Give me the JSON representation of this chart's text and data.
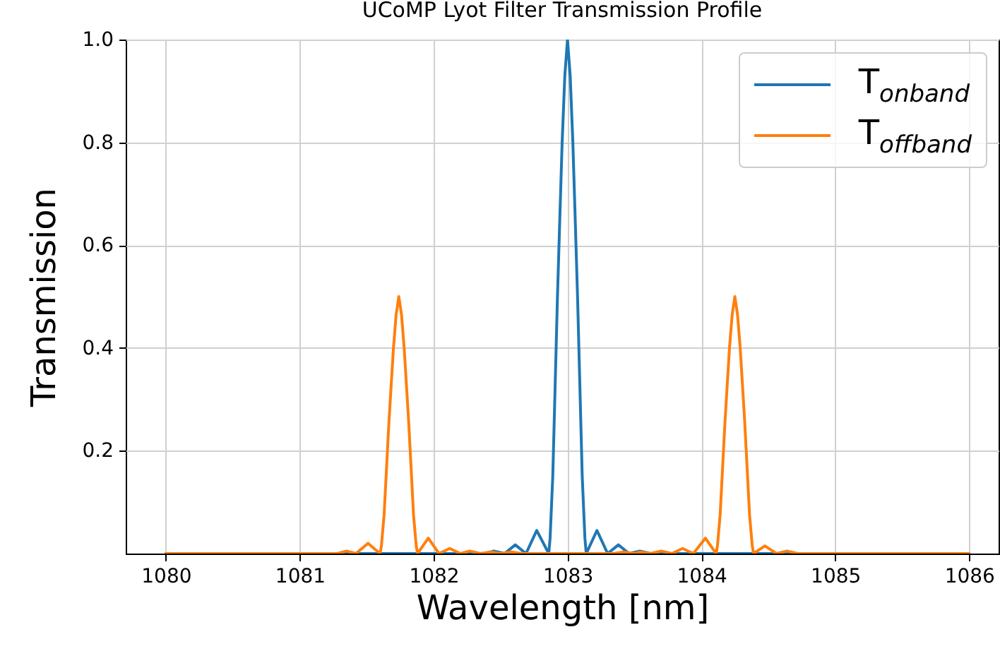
{
  "chart_data": {
    "type": "line",
    "title": "UCoMP Lyot Filter Transmission Profile",
    "xlabel": "Wavelength [nm]",
    "ylabel": "Transmission",
    "xlim": [
      1079.7,
      1086.22
    ],
    "xticks": [
      1080,
      1081,
      1082,
      1083,
      1084,
      1085,
      1086
    ],
    "ylim": [
      0,
      1
    ],
    "yticks": [
      0.2,
      0.4,
      0.6,
      0.8,
      {
        "value": 1,
        "label": "1.0"
      }
    ],
    "grid": true,
    "legend": "top right",
    "marker": "none",
    "line_style": "solid",
    "series": [
      {
        "name": "T$_{onband}$",
        "color": "#1f77b4",
        "x": [
          1080,
          1082.3,
          1082.38,
          1082.45,
          1082.53,
          1082.61,
          1082.69,
          1082.77,
          1082.86,
          1082.87,
          1082.89,
          1082.91,
          1082.925,
          1082.94,
          1082.96,
          1082.98,
          1083,
          1083.02,
          1083.04,
          1083.06,
          1083.075,
          1083.09,
          1083.11,
          1083.13,
          1083.14,
          1083.22,
          1083.3,
          1083.38,
          1083.46,
          1083.54,
          1083.62,
          1086
        ],
        "values": [
          0,
          0,
          0,
          0.005,
          0,
          0.017,
          0,
          0.045,
          0,
          0.03,
          0.15,
          0.35,
          0.5,
          0.63,
          0.8,
          0.93,
          1.0,
          0.93,
          0.8,
          0.63,
          0.5,
          0.35,
          0.15,
          0.03,
          0,
          0.045,
          0,
          0.017,
          0,
          0.005,
          0,
          0
        ]
      },
      {
        "name": "T$_{offband}$",
        "color": "#ff7f0e",
        "x": [
          1080,
          1081.28,
          1081.35,
          1081.42,
          1081.51,
          1081.6,
          1081.61,
          1081.63,
          1081.65,
          1081.665,
          1081.68,
          1081.7,
          1081.72,
          1081.74,
          1081.76,
          1081.78,
          1081.8,
          1081.815,
          1081.83,
          1081.85,
          1081.87,
          1081.88,
          1081.96,
          1082.04,
          1082.12,
          1082.2,
          1082.27,
          1082.35,
          1082.43,
          1082.5,
          1082.58,
          1082.66,
          1083.34,
          1083.42,
          1083.5,
          1083.54,
          1083.62,
          1083.7,
          1083.78,
          1083.86,
          1083.94,
          1084.03,
          1084.11,
          1084.12,
          1084.14,
          1084.16,
          1084.175,
          1084.19,
          1084.21,
          1084.23,
          1084.25,
          1084.27,
          1084.29,
          1084.31,
          1084.325,
          1084.34,
          1084.36,
          1084.38,
          1084.39,
          1084.475,
          1084.56,
          1084.64,
          1084.72,
          1086
        ],
        "values": [
          0,
          0,
          0.005,
          0,
          0.02,
          0,
          0.015,
          0.075,
          0.175,
          0.25,
          0.315,
          0.4,
          0.465,
          0.5,
          0.465,
          0.4,
          0.315,
          0.25,
          0.175,
          0.075,
          0.015,
          0,
          0.03,
          0,
          0.01,
          0,
          0.005,
          0,
          0.003,
          0,
          0.003,
          0,
          0,
          0.003,
          0,
          0.003,
          0,
          0.005,
          0,
          0.01,
          0,
          0.03,
          0,
          0.015,
          0.075,
          0.175,
          0.25,
          0.315,
          0.4,
          0.465,
          0.5,
          0.465,
          0.4,
          0.315,
          0.25,
          0.175,
          0.075,
          0.015,
          0,
          0.015,
          0,
          0.005,
          0,
          0
        ]
      }
    ]
  }
}
